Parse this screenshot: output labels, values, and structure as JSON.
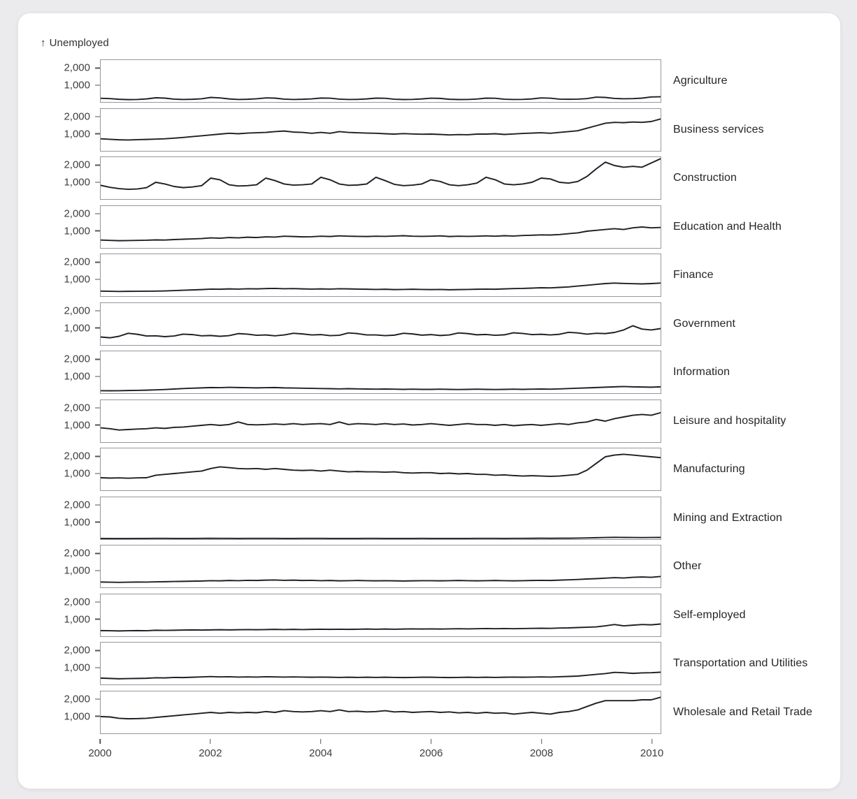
{
  "title": {
    "arrow": "↑",
    "text": "Unemployed"
  },
  "line_color": "#1d2026",
  "panel_border_color": "#97979c",
  "background_color": "#ebebed",
  "card_color": "#ffffff",
  "chart_data": {
    "type": "line",
    "title": "↑ Unemployed",
    "ylabel": "Unemployed",
    "xlabel": "",
    "layout": "small-multiples, one facet per industry, shared x and y scales, grid off, no legend, facet labels on right",
    "ylim": [
      0,
      2500
    ],
    "x_domain": [
      2000,
      2010.17
    ],
    "x_start_year": 2000,
    "x_step_months": 2,
    "y_ticks": [
      {
        "value": 2000,
        "label": "2,000"
      },
      {
        "value": 1000,
        "label": "1,000"
      }
    ],
    "x_ticks": [
      {
        "value": 2000,
        "label": "2000"
      },
      {
        "value": 2002,
        "label": "2002"
      },
      {
        "value": 2004,
        "label": "2004"
      },
      {
        "value": 2006,
        "label": "2006"
      },
      {
        "value": 2008,
        "label": "2008"
      },
      {
        "value": 2010,
        "label": "2010"
      }
    ],
    "series": [
      {
        "name": "Agriculture",
        "values": [
          220,
          200,
          160,
          140,
          150,
          180,
          250,
          230,
          170,
          150,
          160,
          190,
          270,
          240,
          180,
          150,
          160,
          190,
          240,
          230,
          170,
          150,
          160,
          185,
          235,
          225,
          170,
          150,
          155,
          180,
          230,
          220,
          165,
          145,
          155,
          180,
          225,
          215,
          160,
          145,
          150,
          175,
          230,
          220,
          165,
          150,
          155,
          180,
          240,
          225,
          170,
          160,
          170,
          200,
          290,
          270,
          210,
          190,
          200,
          230,
          300,
          310
        ]
      },
      {
        "name": "Business services",
        "values": [
          720,
          690,
          660,
          650,
          670,
          680,
          700,
          720,
          760,
          800,
          850,
          900,
          950,
          1000,
          1050,
          1020,
          1060,
          1080,
          1100,
          1150,
          1180,
          1120,
          1100,
          1050,
          1100,
          1050,
          1150,
          1100,
          1080,
          1060,
          1050,
          1020,
          1000,
          1030,
          1010,
          990,
          1000,
          980,
          950,
          970,
          960,
          1000,
          1000,
          1020,
          980,
          1010,
          1040,
          1060,
          1080,
          1050,
          1100,
          1150,
          1200,
          1350,
          1500,
          1650,
          1700,
          1680,
          1720,
          1700,
          1750,
          1900
        ]
      },
      {
        "name": "Construction",
        "values": [
          820,
          700,
          620,
          580,
          600,
          680,
          1000,
          900,
          750,
          680,
          720,
          800,
          1250,
          1150,
          850,
          780,
          800,
          850,
          1250,
          1100,
          900,
          830,
          850,
          900,
          1300,
          1150,
          900,
          820,
          840,
          900,
          1300,
          1100,
          880,
          800,
          830,
          900,
          1150,
          1050,
          850,
          800,
          850,
          950,
          1300,
          1150,
          900,
          850,
          900,
          1000,
          1250,
          1200,
          1000,
          950,
          1050,
          1350,
          1800,
          2200,
          2000,
          1900,
          1950,
          1900,
          2150,
          2400
        ]
      },
      {
        "name": "Education and Health",
        "values": [
          470,
          450,
          430,
          440,
          450,
          460,
          480,
          470,
          500,
          520,
          540,
          560,
          600,
          580,
          620,
          600,
          640,
          620,
          660,
          650,
          700,
          680,
          660,
          670,
          700,
          680,
          720,
          700,
          690,
          680,
          700,
          690,
          710,
          730,
          700,
          690,
          700,
          720,
          680,
          700,
          690,
          700,
          720,
          700,
          730,
          710,
          740,
          760,
          780,
          770,
          800,
          850,
          900,
          1000,
          1050,
          1100,
          1150,
          1100,
          1200,
          1250,
          1200,
          1220
        ]
      },
      {
        "name": "Finance",
        "values": [
          300,
          290,
          280,
          285,
          290,
          295,
          300,
          310,
          330,
          350,
          370,
          390,
          420,
          410,
          430,
          420,
          440,
          430,
          450,
          460,
          440,
          450,
          430,
          420,
          430,
          420,
          440,
          430,
          420,
          410,
          400,
          410,
          390,
          400,
          410,
          400,
          390,
          400,
          380,
          390,
          400,
          410,
          420,
          410,
          430,
          450,
          460,
          480,
          500,
          490,
          520,
          550,
          600,
          650,
          700,
          750,
          780,
          760,
          740,
          730,
          750,
          780
        ]
      },
      {
        "name": "Government",
        "values": [
          480,
          430,
          520,
          700,
          640,
          540,
          550,
          500,
          540,
          650,
          620,
          550,
          570,
          520,
          560,
          680,
          650,
          580,
          600,
          550,
          600,
          700,
          660,
          600,
          620,
          560,
          580,
          720,
          680,
          600,
          600,
          560,
          590,
          700,
          660,
          590,
          620,
          570,
          600,
          720,
          680,
          610,
          630,
          580,
          610,
          730,
          690,
          620,
          640,
          600,
          640,
          760,
          720,
          650,
          700,
          680,
          750,
          900,
          1150,
          950,
          900,
          980
        ]
      },
      {
        "name": "Information",
        "values": [
          150,
          145,
          150,
          160,
          170,
          180,
          200,
          220,
          250,
          280,
          300,
          320,
          340,
          330,
          350,
          340,
          330,
          320,
          330,
          340,
          320,
          310,
          300,
          290,
          280,
          270,
          260,
          270,
          260,
          250,
          240,
          250,
          240,
          230,
          240,
          230,
          230,
          240,
          230,
          220,
          230,
          240,
          230,
          220,
          230,
          240,
          230,
          240,
          250,
          240,
          260,
          280,
          300,
          320,
          340,
          360,
          380,
          400,
          380,
          370,
          360,
          380
        ]
      },
      {
        "name": "Leisure and hospitality",
        "values": [
          850,
          800,
          720,
          750,
          780,
          800,
          850,
          820,
          880,
          900,
          950,
          1000,
          1050,
          1000,
          1050,
          1200,
          1050,
          1030,
          1050,
          1080,
          1050,
          1100,
          1050,
          1080,
          1100,
          1050,
          1200,
          1050,
          1100,
          1080,
          1050,
          1100,
          1050,
          1080,
          1020,
          1050,
          1100,
          1050,
          1000,
          1050,
          1100,
          1050,
          1050,
          1000,
          1050,
          980,
          1020,
          1050,
          1000,
          1050,
          1100,
          1050,
          1150,
          1200,
          1350,
          1250,
          1400,
          1500,
          1600,
          1650,
          1600,
          1750
        ]
      },
      {
        "name": "Manufacturing",
        "values": [
          750,
          730,
          740,
          720,
          740,
          750,
          900,
          950,
          1000,
          1050,
          1100,
          1150,
          1300,
          1400,
          1350,
          1300,
          1280,
          1300,
          1250,
          1300,
          1250,
          1200,
          1180,
          1200,
          1150,
          1200,
          1150,
          1100,
          1120,
          1100,
          1100,
          1080,
          1100,
          1050,
          1030,
          1050,
          1050,
          1000,
          1020,
          980,
          1000,
          950,
          950,
          900,
          920,
          880,
          850,
          870,
          850,
          830,
          850,
          900,
          950,
          1200,
          1600,
          2000,
          2100,
          2150,
          2100,
          2050,
          2000,
          1950
        ]
      },
      {
        "name": "Mining and Extraction",
        "values": [
          45,
          42,
          40,
          42,
          44,
          46,
          50,
          48,
          45,
          44,
          46,
          48,
          52,
          50,
          48,
          46,
          48,
          50,
          50,
          48,
          46,
          45,
          47,
          49,
          48,
          46,
          45,
          44,
          46,
          48,
          47,
          45,
          44,
          43,
          45,
          47,
          46,
          45,
          44,
          45,
          46,
          48,
          48,
          47,
          46,
          47,
          49,
          52,
          55,
          53,
          55,
          58,
          65,
          75,
          90,
          100,
          110,
          105,
          100,
          98,
          100,
          105
        ]
      },
      {
        "name": "Other",
        "values": [
          320,
          310,
          300,
          310,
          320,
          315,
          330,
          340,
          350,
          360,
          370,
          380,
          400,
          390,
          410,
          400,
          420,
          410,
          430,
          440,
          420,
          430,
          410,
          420,
          400,
          410,
          390,
          400,
          410,
          400,
          390,
          400,
          390,
          380,
          390,
          400,
          400,
          390,
          400,
          410,
          400,
          390,
          400,
          410,
          400,
          390,
          400,
          410,
          420,
          410,
          430,
          450,
          470,
          500,
          520,
          550,
          580,
          560,
          600,
          620,
          600,
          650
        ]
      },
      {
        "name": "Self-employed",
        "values": [
          340,
          330,
          320,
          330,
          340,
          330,
          360,
          350,
          360,
          370,
          380,
          370,
          380,
          390,
          380,
          390,
          400,
          390,
          400,
          410,
          400,
          410,
          400,
          410,
          420,
          410,
          420,
          410,
          420,
          430,
          420,
          430,
          420,
          430,
          440,
          430,
          440,
          430,
          440,
          450,
          440,
          450,
          460,
          450,
          460,
          450,
          460,
          470,
          480,
          470,
          490,
          500,
          520,
          540,
          560,
          620,
          700,
          620,
          660,
          700,
          680,
          730
        ]
      },
      {
        "name": "Transportation and Utilities",
        "values": [
          380,
          360,
          340,
          350,
          360,
          370,
          400,
          390,
          420,
          410,
          430,
          450,
          470,
          450,
          460,
          440,
          450,
          440,
          460,
          450,
          440,
          450,
          440,
          430,
          440,
          430,
          420,
          430,
          420,
          430,
          420,
          430,
          420,
          410,
          420,
          430,
          430,
          420,
          410,
          420,
          430,
          420,
          430,
          420,
          430,
          440,
          430,
          440,
          450,
          440,
          460,
          480,
          500,
          550,
          600,
          650,
          720,
          700,
          660,
          690,
          700,
          730
        ]
      },
      {
        "name": "Wholesale and Retail Trade",
        "values": [
          1000,
          980,
          900,
          870,
          880,
          900,
          950,
          1000,
          1050,
          1100,
          1150,
          1200,
          1250,
          1200,
          1250,
          1220,
          1250,
          1230,
          1300,
          1250,
          1350,
          1300,
          1280,
          1300,
          1350,
          1300,
          1400,
          1300,
          1320,
          1280,
          1300,
          1350,
          1280,
          1300,
          1250,
          1280,
          1300,
          1250,
          1280,
          1220,
          1250,
          1200,
          1250,
          1200,
          1220,
          1150,
          1200,
          1250,
          1200,
          1150,
          1250,
          1300,
          1400,
          1600,
          1800,
          1950,
          1950,
          1950,
          1950,
          2000,
          2000,
          2150
        ]
      }
    ]
  }
}
